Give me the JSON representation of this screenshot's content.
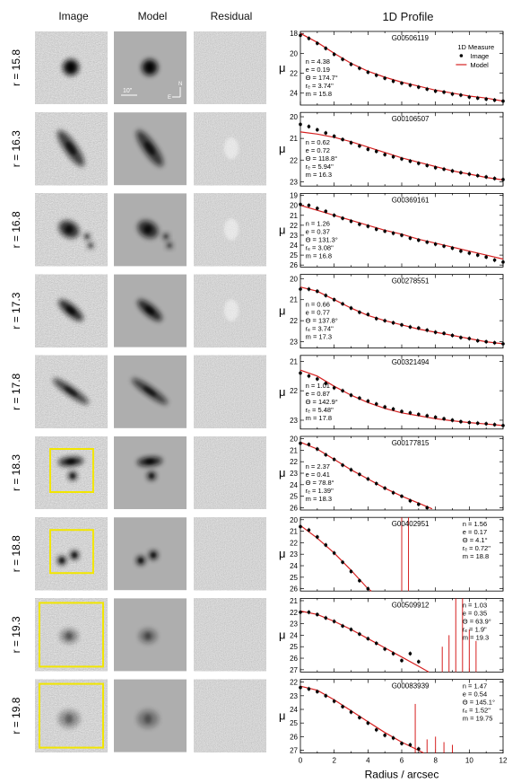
{
  "columns": {
    "image": "Image",
    "model": "Model",
    "residual": "Residual",
    "profile": "1D Profile"
  },
  "legend": {
    "title": "1D Measure",
    "image": "Image",
    "model": "Model"
  },
  "scalebar": {
    "label": "10\"",
    "north": "N",
    "east": "E"
  },
  "xaxis": {
    "label": "Radius / arcsec",
    "ticks": [
      "0",
      "2",
      "4",
      "6",
      "8",
      "10",
      "12"
    ]
  },
  "ylabel": "μ",
  "colors": {
    "model_line": "#d62020",
    "box": "#f2e600",
    "points": "#000000"
  },
  "rows": [
    {
      "rmag": "r = 15.8",
      "id": "G00506119",
      "n": "n = 4.38",
      "e": "e = 0.19",
      "theta": "Θ = 174.7°",
      "re": "rₑ = 3.74\"",
      "m": "m = 15.8",
      "yticks": [
        "18",
        "20",
        "22",
        "24"
      ],
      "ymin": 17.8,
      "ymax": 25.2,
      "boxed": false,
      "legend": true,
      "params_right": false,
      "points": [
        [
          0,
          18.2
        ],
        [
          0.5,
          18.5
        ],
        [
          1,
          19.0
        ],
        [
          1.5,
          19.5
        ],
        [
          2,
          20.1
        ],
        [
          2.5,
          20.6
        ],
        [
          3,
          21.1
        ],
        [
          3.5,
          21.5
        ],
        [
          4,
          21.9
        ],
        [
          4.5,
          22.2
        ],
        [
          5,
          22.5
        ],
        [
          5.5,
          22.8
        ],
        [
          6,
          23.0
        ],
        [
          6.5,
          23.2
        ],
        [
          7,
          23.4
        ],
        [
          7.5,
          23.6
        ],
        [
          8,
          23.8
        ],
        [
          8.5,
          23.9
        ],
        [
          9,
          24.1
        ],
        [
          9.5,
          24.2
        ],
        [
          10,
          24.4
        ],
        [
          10.5,
          24.5
        ],
        [
          11,
          24.6
        ],
        [
          11.5,
          24.7
        ],
        [
          12,
          24.8
        ]
      ],
      "model": [
        [
          0,
          18.0
        ],
        [
          1,
          18.9
        ],
        [
          2,
          20.0
        ],
        [
          3,
          21.0
        ],
        [
          4,
          21.8
        ],
        [
          5,
          22.4
        ],
        [
          6,
          22.9
        ],
        [
          7,
          23.3
        ],
        [
          8,
          23.7
        ],
        [
          9,
          24.0
        ],
        [
          10,
          24.3
        ],
        [
          11,
          24.5
        ],
        [
          12,
          24.8
        ]
      ],
      "spikes": []
    },
    {
      "rmag": "r = 16.3",
      "id": "G00106507",
      "n": "n = 0.62",
      "e": "e = 0.72",
      "theta": "Θ = 118.8°",
      "re": "rₑ = 5.94\"",
      "m": "m = 16.3",
      "yticks": [
        "20",
        "21",
        "22",
        "23"
      ],
      "ymin": 19.8,
      "ymax": 23.2,
      "boxed": false,
      "legend": false,
      "params_right": false,
      "points": [
        [
          0,
          20.35
        ],
        [
          0.5,
          20.45
        ],
        [
          1,
          20.6
        ],
        [
          1.5,
          20.75
        ],
        [
          2,
          20.9
        ],
        [
          2.5,
          21.05
        ],
        [
          3,
          21.2
        ],
        [
          3.5,
          21.35
        ],
        [
          4,
          21.5
        ],
        [
          4.5,
          21.6
        ],
        [
          5,
          21.75
        ],
        [
          5.5,
          21.85
        ],
        [
          6,
          21.95
        ],
        [
          6.5,
          22.05
        ],
        [
          7,
          22.15
        ],
        [
          7.5,
          22.25
        ],
        [
          8,
          22.35
        ],
        [
          8.5,
          22.42
        ],
        [
          9,
          22.5
        ],
        [
          9.5,
          22.58
        ],
        [
          10,
          22.65
        ],
        [
          10.5,
          22.72
        ],
        [
          11,
          22.78
        ],
        [
          11.5,
          22.85
        ],
        [
          12,
          22.9
        ]
      ],
      "model": [
        [
          0,
          20.7
        ],
        [
          1,
          20.8
        ],
        [
          2,
          20.95
        ],
        [
          3,
          21.15
        ],
        [
          4,
          21.4
        ],
        [
          5,
          21.65
        ],
        [
          6,
          21.9
        ],
        [
          7,
          22.1
        ],
        [
          8,
          22.3
        ],
        [
          9,
          22.5
        ],
        [
          10,
          22.65
        ],
        [
          11,
          22.8
        ],
        [
          12,
          22.92
        ]
      ],
      "spikes": []
    },
    {
      "rmag": "r = 16.8",
      "id": "G00369161",
      "n": "n = 1.26",
      "e": "e = 0.37",
      "theta": "Θ = 131.3°",
      "re": "rₑ = 3.08\"",
      "m": "m = 16.8",
      "yticks": [
        "19",
        "20",
        "21",
        "22",
        "23",
        "24",
        "25",
        "26"
      ],
      "ymin": 18.8,
      "ymax": 26.2,
      "boxed": false,
      "legend": false,
      "params_right": false,
      "points": [
        [
          0,
          19.9
        ],
        [
          0.5,
          20.0
        ],
        [
          1,
          20.3
        ],
        [
          1.5,
          20.6
        ],
        [
          2,
          21.0
        ],
        [
          2.5,
          21.3
        ],
        [
          3,
          21.6
        ],
        [
          3.5,
          21.9
        ],
        [
          4,
          22.1
        ],
        [
          4.5,
          22.4
        ],
        [
          5,
          22.6
        ],
        [
          5.5,
          22.8
        ],
        [
          6,
          23.0
        ],
        [
          6.5,
          23.3
        ],
        [
          7,
          23.5
        ],
        [
          7.5,
          23.7
        ],
        [
          8,
          23.9
        ],
        [
          8.5,
          24.1
        ],
        [
          9,
          24.3
        ],
        [
          9.5,
          24.6
        ],
        [
          10,
          24.8
        ],
        [
          10.5,
          25.0
        ],
        [
          11,
          25.2
        ],
        [
          11.5,
          25.5
        ],
        [
          12,
          25.7
        ]
      ],
      "model": [
        [
          0,
          20.0
        ],
        [
          1,
          20.5
        ],
        [
          2,
          21.0
        ],
        [
          3,
          21.5
        ],
        [
          4,
          22.0
        ],
        [
          5,
          22.5
        ],
        [
          6,
          22.9
        ],
        [
          7,
          23.4
        ],
        [
          8,
          23.8
        ],
        [
          9,
          24.2
        ],
        [
          10,
          24.6
        ],
        [
          11,
          25.0
        ],
        [
          12,
          25.4
        ]
      ],
      "spikes": []
    },
    {
      "rmag": "r = 17.3",
      "id": "G00278551",
      "n": "n = 0.66",
      "e": "e = 0.77",
      "theta": "Θ = 137.8°",
      "re": "rₑ = 3.74\"",
      "m": "m = 17.3",
      "yticks": [
        "20",
        "21",
        "22",
        "23"
      ],
      "ymin": 19.8,
      "ymax": 23.3,
      "boxed": false,
      "legend": false,
      "params_right": false,
      "points": [
        [
          0,
          20.5
        ],
        [
          0.5,
          20.5
        ],
        [
          1,
          20.6
        ],
        [
          1.5,
          20.8
        ],
        [
          2,
          21.0
        ],
        [
          2.5,
          21.2
        ],
        [
          3,
          21.4
        ],
        [
          3.5,
          21.6
        ],
        [
          4,
          21.7
        ],
        [
          4.5,
          21.9
        ],
        [
          5,
          22.0
        ],
        [
          5.5,
          22.1
        ],
        [
          6,
          22.2
        ],
        [
          6.5,
          22.3
        ],
        [
          7,
          22.35
        ],
        [
          7.5,
          22.45
        ],
        [
          8,
          22.55
        ],
        [
          8.5,
          22.6
        ],
        [
          9,
          22.7
        ],
        [
          9.5,
          22.8
        ],
        [
          10,
          22.85
        ],
        [
          10.5,
          22.95
        ],
        [
          11,
          23.0
        ],
        [
          11.5,
          23.05
        ],
        [
          12,
          23.1
        ]
      ],
      "model": [
        [
          0,
          20.4
        ],
        [
          1,
          20.6
        ],
        [
          2,
          21.0
        ],
        [
          3,
          21.4
        ],
        [
          4,
          21.75
        ],
        [
          5,
          22.0
        ],
        [
          6,
          22.2
        ],
        [
          7,
          22.4
        ],
        [
          8,
          22.55
        ],
        [
          9,
          22.7
        ],
        [
          10,
          22.85
        ],
        [
          11,
          23.0
        ],
        [
          12,
          23.1
        ]
      ],
      "spikes": []
    },
    {
      "rmag": "r = 17.8",
      "id": "G00321494",
      "n": "n = 1.01",
      "e": "e = 0.87",
      "theta": "Θ = 142.9°",
      "re": "rₑ = 5.48\"",
      "m": "m = 17.8",
      "yticks": [
        "21",
        "22",
        "23"
      ],
      "ymin": 20.8,
      "ymax": 23.3,
      "boxed": false,
      "legend": false,
      "params_right": false,
      "points": [
        [
          0,
          21.4
        ],
        [
          0.5,
          21.5
        ],
        [
          1,
          21.6
        ],
        [
          1.5,
          21.75
        ],
        [
          2,
          21.9
        ],
        [
          2.5,
          22.0
        ],
        [
          3,
          22.15
        ],
        [
          3.5,
          22.25
        ],
        [
          4,
          22.35
        ],
        [
          4.5,
          22.45
        ],
        [
          5,
          22.55
        ],
        [
          5.5,
          22.62
        ],
        [
          6,
          22.7
        ],
        [
          6.5,
          22.75
        ],
        [
          7,
          22.8
        ],
        [
          7.5,
          22.85
        ],
        [
          8,
          22.9
        ],
        [
          8.5,
          22.95
        ],
        [
          9,
          23.0
        ],
        [
          9.5,
          23.05
        ],
        [
          10,
          23.08
        ],
        [
          10.5,
          23.1
        ],
        [
          11,
          23.12
        ],
        [
          11.5,
          23.15
        ],
        [
          12,
          23.18
        ]
      ],
      "model": [
        [
          0,
          21.3
        ],
        [
          1,
          21.5
        ],
        [
          2,
          21.85
        ],
        [
          3,
          22.15
        ],
        [
          4,
          22.4
        ],
        [
          5,
          22.6
        ],
        [
          6,
          22.75
        ],
        [
          7,
          22.85
        ],
        [
          8,
          22.95
        ],
        [
          9,
          23.02
        ],
        [
          10,
          23.08
        ],
        [
          11,
          23.13
        ],
        [
          12,
          23.18
        ]
      ],
      "spikes": []
    },
    {
      "rmag": "r = 18.3",
      "id": "G00177815",
      "n": "n = 2.37",
      "e": "e = 0.41",
      "theta": "Θ = 78.8°",
      "re": "rₑ = 1.39\"",
      "m": "m = 18.3",
      "yticks": [
        "20",
        "21",
        "22",
        "23",
        "24",
        "25",
        "26"
      ],
      "ymin": 19.8,
      "ymax": 26.2,
      "boxed": true,
      "legend": false,
      "params_right": false,
      "points": [
        [
          0,
          20.4
        ],
        [
          0.5,
          20.5
        ],
        [
          1,
          20.9
        ],
        [
          1.5,
          21.4
        ],
        [
          2,
          21.8
        ],
        [
          2.5,
          22.3
        ],
        [
          3,
          22.7
        ],
        [
          3.5,
          23.1
        ],
        [
          4,
          23.5
        ],
        [
          4.5,
          23.9
        ],
        [
          5,
          24.3
        ],
        [
          5.5,
          24.7
        ],
        [
          6,
          25.0
        ],
        [
          6.5,
          25.4
        ],
        [
          7,
          25.7
        ],
        [
          7.5,
          26.0
        ]
      ],
      "model": [
        [
          0,
          20.3
        ],
        [
          1,
          20.9
        ],
        [
          2,
          21.8
        ],
        [
          3,
          22.7
        ],
        [
          4,
          23.5
        ],
        [
          5,
          24.3
        ],
        [
          6,
          25.0
        ],
        [
          7,
          25.6
        ],
        [
          7.8,
          26.1
        ]
      ],
      "spikes": []
    },
    {
      "rmag": "r = 18.8",
      "id": "G00402951",
      "n": "n = 1.56",
      "e": "e = 0.17",
      "theta": "Θ = 4.1°",
      "re": "rₑ = 0.72\"",
      "m": "m = 18.8",
      "yticks": [
        "20",
        "21",
        "22",
        "23",
        "24",
        "25",
        "26"
      ],
      "ymin": 19.8,
      "ymax": 26.2,
      "boxed": true,
      "legend": false,
      "params_right": true,
      "points": [
        [
          0,
          20.6
        ],
        [
          0.5,
          20.9
        ],
        [
          1,
          21.5
        ],
        [
          1.5,
          22.2
        ],
        [
          2,
          22.9
        ],
        [
          2.5,
          23.7
        ],
        [
          3,
          24.5
        ],
        [
          3.5,
          25.3
        ],
        [
          4,
          26.0
        ]
      ],
      "model": [
        [
          0,
          20.5
        ],
        [
          1,
          21.6
        ],
        [
          2,
          22.9
        ],
        [
          3,
          24.4
        ],
        [
          4,
          26.0
        ],
        [
          4.2,
          26.2
        ]
      ],
      "spikes": [
        [
          6,
          19.8
        ],
        [
          6.4,
          19.8
        ]
      ]
    },
    {
      "rmag": "r = 19.3",
      "id": "G00509912",
      "n": "n = 1.03",
      "e": "e = 0.35",
      "theta": "Θ = 63.9°",
      "re": "rₑ = 1.9\"",
      "m": "m = 19.3",
      "yticks": [
        "21",
        "22",
        "23",
        "24",
        "25",
        "26",
        "27"
      ],
      "ymin": 20.8,
      "ymax": 27.2,
      "boxed": true,
      "legend": false,
      "params_right": true,
      "points": [
        [
          0,
          22.0
        ],
        [
          0.5,
          22.0
        ],
        [
          1,
          22.2
        ],
        [
          1.5,
          22.5
        ],
        [
          2,
          22.8
        ],
        [
          2.5,
          23.2
        ],
        [
          3,
          23.5
        ],
        [
          3.5,
          23.9
        ],
        [
          4,
          24.3
        ],
        [
          4.5,
          24.7
        ],
        [
          5,
          25.2
        ],
        [
          5.5,
          25.6
        ],
        [
          6,
          26.2
        ],
        [
          6.5,
          25.6
        ],
        [
          7,
          26.3
        ]
      ],
      "model": [
        [
          0,
          21.9
        ],
        [
          1,
          22.2
        ],
        [
          2,
          22.8
        ],
        [
          3,
          23.5
        ],
        [
          4,
          24.3
        ],
        [
          5,
          25.1
        ],
        [
          6,
          25.9
        ],
        [
          7,
          26.7
        ],
        [
          7.6,
          27.2
        ]
      ],
      "spikes": [
        [
          8.4,
          25.0
        ],
        [
          8.8,
          24.0
        ],
        [
          9.2,
          20.8
        ],
        [
          9.6,
          20.8
        ],
        [
          10.0,
          23.5
        ],
        [
          10.4,
          24.5
        ]
      ]
    },
    {
      "rmag": "r = 19.8",
      "id": "G00083939",
      "n": "n = 1.47",
      "e": "e = 0.54",
      "theta": "Θ = 145.1°",
      "re": "rₑ = 1.52\"",
      "m": "m = 19.75",
      "yticks": [
        "22",
        "23",
        "24",
        "25",
        "26",
        "27"
      ],
      "ymin": 21.8,
      "ymax": 27.2,
      "boxed": true,
      "legend": false,
      "params_right": true,
      "points": [
        [
          0,
          22.4
        ],
        [
          0.5,
          22.5
        ],
        [
          1,
          22.7
        ],
        [
          1.5,
          23.0
        ],
        [
          2,
          23.4
        ],
        [
          2.5,
          23.8
        ],
        [
          3,
          24.2
        ],
        [
          3.5,
          24.6
        ],
        [
          4,
          25.0
        ],
        [
          4.5,
          25.5
        ],
        [
          5,
          25.9
        ],
        [
          5.5,
          26.1
        ],
        [
          6,
          26.5
        ],
        [
          6.5,
          26.6
        ],
        [
          7,
          26.9
        ]
      ],
      "model": [
        [
          0,
          22.3
        ],
        [
          1,
          22.6
        ],
        [
          2,
          23.3
        ],
        [
          3,
          24.1
        ],
        [
          4,
          24.9
        ],
        [
          5,
          25.7
        ],
        [
          6,
          26.4
        ],
        [
          7,
          27.0
        ],
        [
          7.3,
          27.2
        ]
      ],
      "spikes": [
        [
          6.8,
          23.6
        ],
        [
          7.5,
          26.2
        ],
        [
          8,
          26.0
        ],
        [
          8.5,
          26.4
        ],
        [
          9,
          26.6
        ]
      ]
    }
  ]
}
